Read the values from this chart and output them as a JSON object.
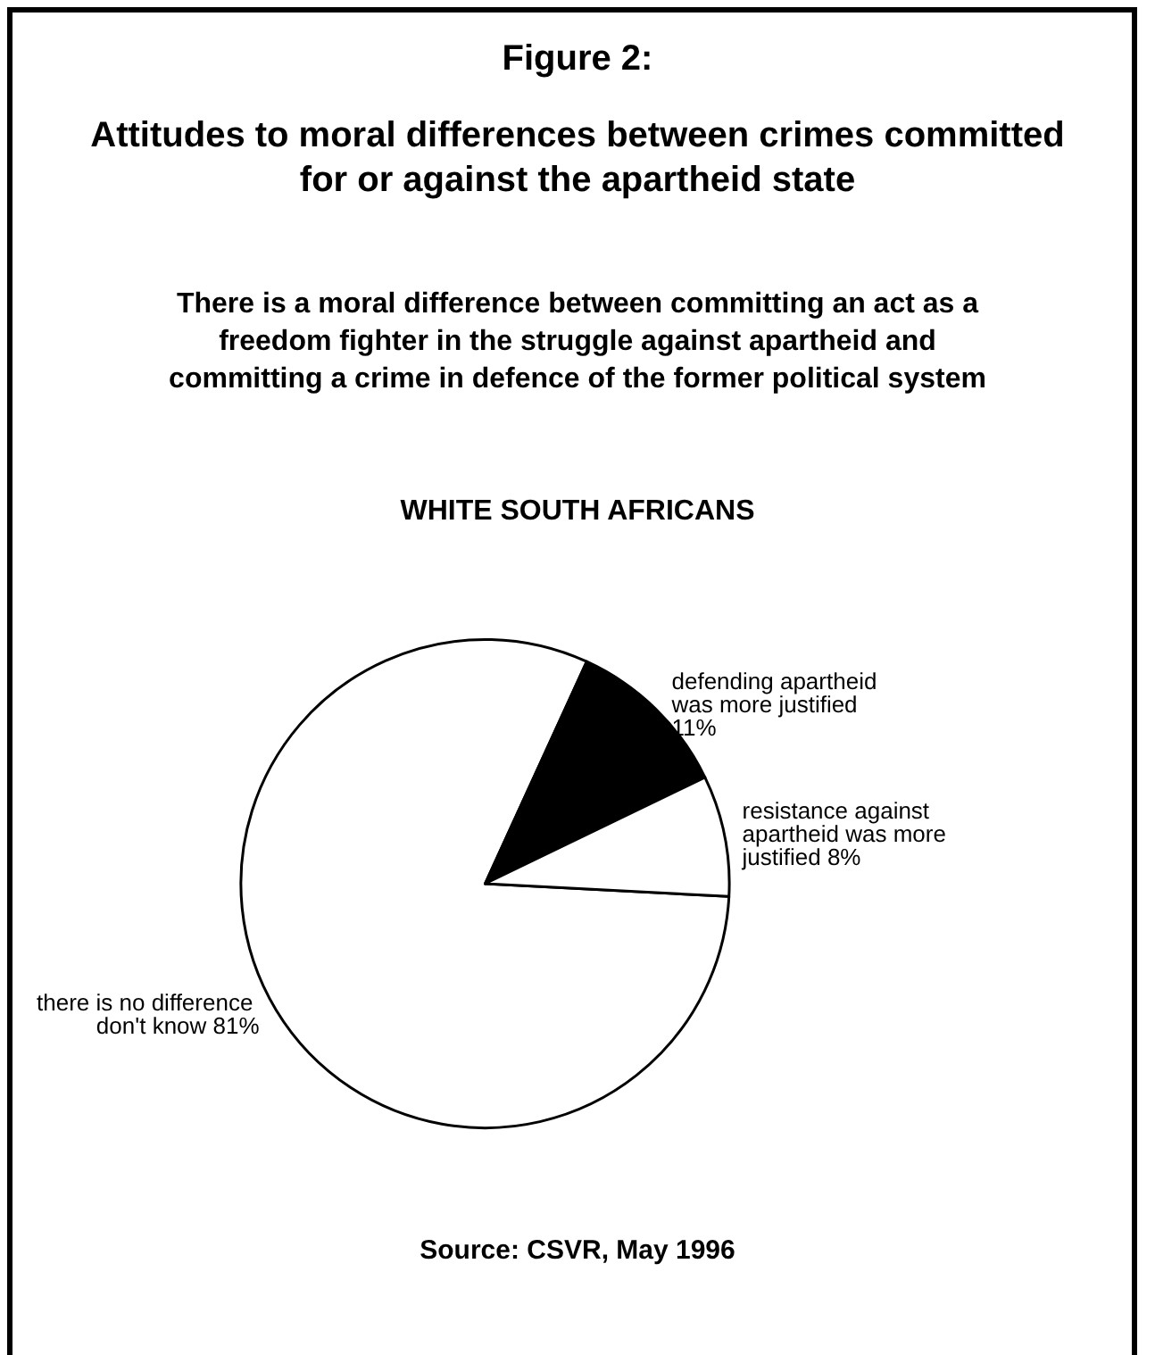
{
  "chart_data": {
    "type": "pie",
    "title": "Figure 2:",
    "subtitle": "Attitudes to moral differences between crimes committed for or against the apartheid state",
    "annotations": [
      "There is a moral difference between committing an act as a freedom fighter in the struggle against apartheid and committing a crime in defence of the former political system",
      "WHITE SOUTH AFRICANS",
      "Source: CSVR, May 1996"
    ],
    "categories": [
      "there is no difference don't know",
      "defending apartheid was more justified",
      "resistance against apartheid was more justified"
    ],
    "values": [
      81,
      11,
      8
    ],
    "value_labels": [
      "81%",
      "11%",
      "8%"
    ],
    "colors": [
      "#ffffff",
      "#000000",
      "#ffffff"
    ]
  }
}
